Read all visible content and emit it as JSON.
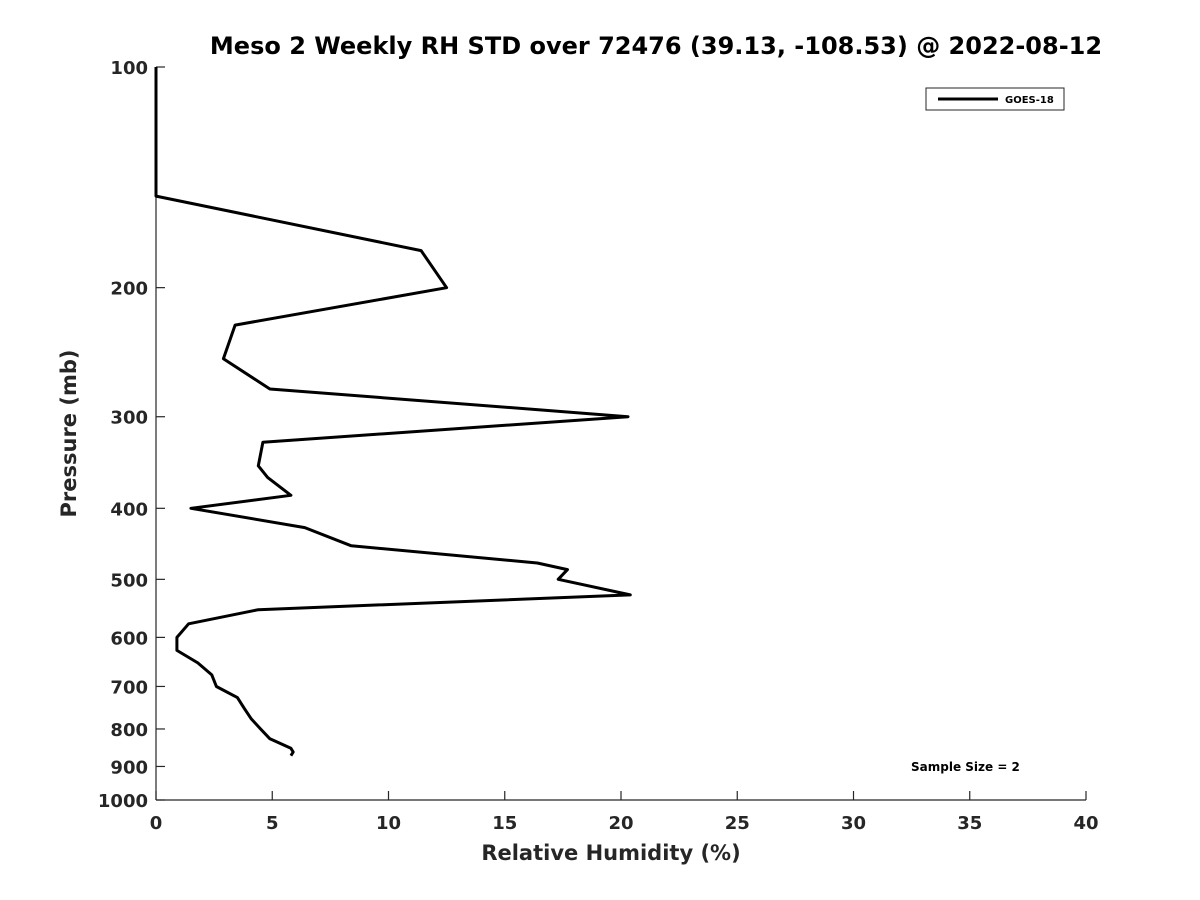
{
  "chart_data": {
    "type": "line",
    "title": "Meso 2 Weekly RH STD over 72476 (39.13, -108.53) @ 2022-08-12",
    "xlabel": "Relative Humidity (%)",
    "ylabel": "Pressure (mb)",
    "xlim": [
      0,
      40
    ],
    "ylim": [
      100,
      1000
    ],
    "y_scale": "log",
    "y_reversed": true,
    "x_ticks": [
      0,
      5,
      10,
      15,
      20,
      25,
      30,
      35,
      40
    ],
    "x_tick_labels": [
      "0",
      "5",
      "10",
      "15",
      "20",
      "25",
      "30",
      "35",
      "40"
    ],
    "y_ticks": [
      100,
      200,
      300,
      400,
      500,
      600,
      700,
      800,
      900,
      1000
    ],
    "y_tick_labels": [
      "100",
      "200",
      "300",
      "400",
      "500",
      "600",
      "700",
      "800",
      "900",
      "1000"
    ],
    "grid": false,
    "legend_position": "top-right",
    "series": [
      {
        "name": "GOES-18",
        "color": "#000000",
        "points": [
          {
            "x": 0,
            "p": 100
          },
          {
            "x": 0,
            "p": 150
          },
          {
            "x": 11.4,
            "p": 178
          },
          {
            "x": 12.5,
            "p": 200
          },
          {
            "x": 3.4,
            "p": 225
          },
          {
            "x": 2.9,
            "p": 250
          },
          {
            "x": 4.9,
            "p": 275
          },
          {
            "x": 20.3,
            "p": 300
          },
          {
            "x": 4.6,
            "p": 325
          },
          {
            "x": 4.4,
            "p": 350
          },
          {
            "x": 4.8,
            "p": 363
          },
          {
            "x": 5.8,
            "p": 384
          },
          {
            "x": 1.5,
            "p": 400
          },
          {
            "x": 6.4,
            "p": 425
          },
          {
            "x": 8.4,
            "p": 450
          },
          {
            "x": 16.4,
            "p": 475
          },
          {
            "x": 17.7,
            "p": 485
          },
          {
            "x": 17.3,
            "p": 500
          },
          {
            "x": 20.4,
            "p": 525
          },
          {
            "x": 4.4,
            "p": 550
          },
          {
            "x": 1.4,
            "p": 575
          },
          {
            "x": 0.9,
            "p": 600
          },
          {
            "x": 0.9,
            "p": 625
          },
          {
            "x": 1.8,
            "p": 650
          },
          {
            "x": 2.4,
            "p": 675
          },
          {
            "x": 2.6,
            "p": 700
          },
          {
            "x": 3.5,
            "p": 725
          },
          {
            "x": 3.8,
            "p": 750
          },
          {
            "x": 4.1,
            "p": 775
          },
          {
            "x": 4.5,
            "p": 800
          },
          {
            "x": 4.9,
            "p": 825
          },
          {
            "x": 5.8,
            "p": 850
          },
          {
            "x": 5.9,
            "p": 860
          },
          {
            "x": 5.8,
            "p": 870
          }
        ]
      }
    ],
    "annotations": [
      "Sample Size = 2"
    ]
  }
}
